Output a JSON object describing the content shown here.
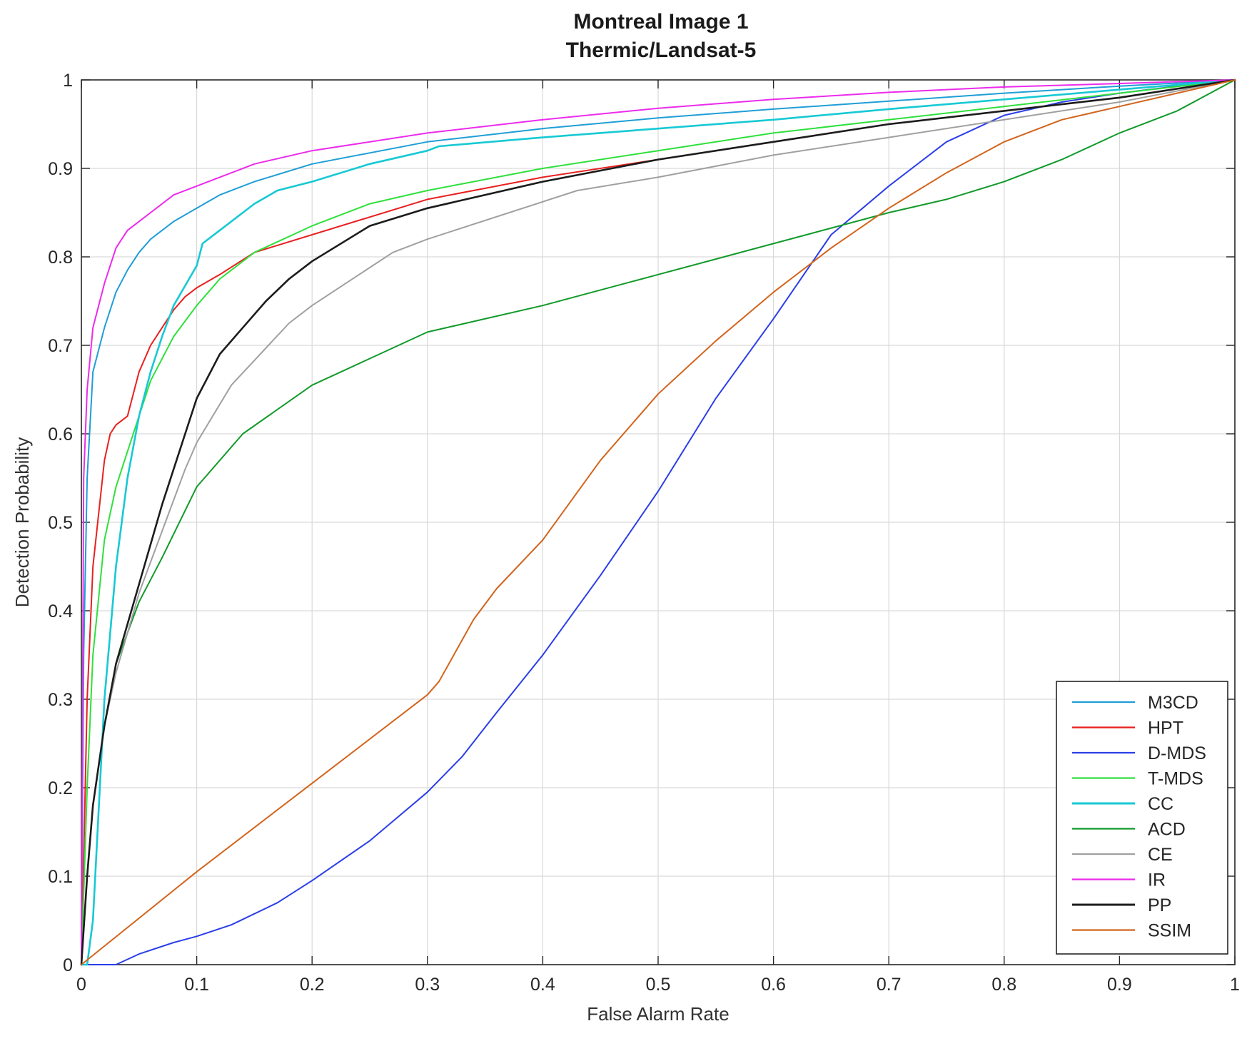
{
  "chart_data": {
    "type": "line",
    "title": "Montreal Image 1",
    "subtitle": "Thermic/Landsat-5",
    "xlabel": "False Alarm Rate",
    "ylabel": "Detection Probability",
    "xlim": [
      0,
      1
    ],
    "ylim": [
      0,
      1
    ],
    "xticks": [
      "0",
      "0.1",
      "0.2",
      "0.3",
      "0.4",
      "0.5",
      "0.6",
      "0.7",
      "0.8",
      "0.9",
      "1"
    ],
    "yticks": [
      "0",
      "0.1",
      "0.2",
      "0.3",
      "0.4",
      "0.5",
      "0.6",
      "0.7",
      "0.8",
      "0.9",
      "1"
    ],
    "grid": true,
    "legend_position": "bottom-right",
    "series": [
      {
        "name": "M3CD",
        "color": "#1f9ed6",
        "x": [
          0,
          0.002,
          0.005,
          0.01,
          0.02,
          0.03,
          0.04,
          0.05,
          0.06,
          0.08,
          0.1,
          0.12,
          0.15,
          0.2,
          0.3,
          0.4,
          0.5,
          0.6,
          0.7,
          0.8,
          0.9,
          1
        ],
        "y": [
          0,
          0.35,
          0.55,
          0.67,
          0.72,
          0.76,
          0.785,
          0.805,
          0.82,
          0.84,
          0.855,
          0.87,
          0.885,
          0.905,
          0.93,
          0.945,
          0.957,
          0.967,
          0.976,
          0.985,
          0.993,
          1
        ]
      },
      {
        "name": "HPT",
        "color": "#e8201f",
        "x": [
          0,
          0.005,
          0.01,
          0.02,
          0.025,
          0.03,
          0.04,
          0.05,
          0.06,
          0.07,
          0.08,
          0.09,
          0.1,
          0.12,
          0.15,
          0.2,
          0.3,
          0.4,
          0.5,
          0.6,
          0.7,
          0.8,
          0.9,
          1
        ],
        "y": [
          0,
          0.3,
          0.45,
          0.57,
          0.6,
          0.61,
          0.62,
          0.67,
          0.7,
          0.72,
          0.74,
          0.755,
          0.765,
          0.78,
          0.805,
          0.825,
          0.865,
          0.89,
          0.91,
          0.93,
          0.95,
          0.965,
          0.98,
          1
        ]
      },
      {
        "name": "D-MDS",
        "color": "#2b3ee8",
        "x": [
          0,
          0.02,
          0.03,
          0.05,
          0.08,
          0.1,
          0.13,
          0.17,
          0.2,
          0.25,
          0.3,
          0.33,
          0.36,
          0.4,
          0.45,
          0.5,
          0.55,
          0.6,
          0.65,
          0.7,
          0.75,
          0.8,
          0.85,
          0.9,
          0.95,
          1
        ],
        "y": [
          0,
          0,
          0,
          0.012,
          0.025,
          0.032,
          0.045,
          0.07,
          0.095,
          0.14,
          0.195,
          0.235,
          0.285,
          0.35,
          0.44,
          0.535,
          0.64,
          0.73,
          0.825,
          0.88,
          0.93,
          0.96,
          0.975,
          0.985,
          0.993,
          1
        ]
      },
      {
        "name": "T-MDS",
        "color": "#2fe03c",
        "x": [
          0,
          0.005,
          0.01,
          0.02,
          0.03,
          0.04,
          0.05,
          0.06,
          0.08,
          0.1,
          0.12,
          0.15,
          0.2,
          0.25,
          0.3,
          0.4,
          0.5,
          0.6,
          0.7,
          0.8,
          0.9,
          1
        ],
        "y": [
          0,
          0.2,
          0.35,
          0.48,
          0.54,
          0.58,
          0.62,
          0.66,
          0.71,
          0.745,
          0.775,
          0.805,
          0.835,
          0.86,
          0.875,
          0.9,
          0.92,
          0.94,
          0.955,
          0.97,
          0.985,
          1
        ]
      },
      {
        "name": "CC",
        "color": "#17c9d4",
        "x": [
          0,
          0.005,
          0.01,
          0.02,
          0.03,
          0.04,
          0.05,
          0.06,
          0.07,
          0.08,
          0.1,
          0.105,
          0.12,
          0.15,
          0.17,
          0.2,
          0.25,
          0.3,
          0.31,
          0.4,
          0.5,
          0.6,
          0.7,
          0.8,
          0.9,
          1
        ],
        "y": [
          0,
          0,
          0.05,
          0.3,
          0.45,
          0.55,
          0.62,
          0.67,
          0.71,
          0.745,
          0.79,
          0.815,
          0.83,
          0.86,
          0.875,
          0.885,
          0.905,
          0.92,
          0.925,
          0.935,
          0.945,
          0.955,
          0.967,
          0.978,
          0.989,
          1
        ]
      },
      {
        "name": "ACD",
        "color": "#119a2a",
        "x": [
          0,
          0.005,
          0.01,
          0.02,
          0.03,
          0.05,
          0.07,
          0.1,
          0.14,
          0.2,
          0.3,
          0.4,
          0.5,
          0.6,
          0.7,
          0.75,
          0.8,
          0.85,
          0.9,
          0.95,
          1
        ],
        "y": [
          0,
          0.1,
          0.18,
          0.27,
          0.34,
          0.41,
          0.46,
          0.54,
          0.6,
          0.655,
          0.715,
          0.745,
          0.78,
          0.815,
          0.85,
          0.865,
          0.885,
          0.91,
          0.94,
          0.965,
          1
        ]
      },
      {
        "name": "CE",
        "color": "#a0a0a0",
        "x": [
          0,
          0.005,
          0.01,
          0.02,
          0.03,
          0.05,
          0.07,
          0.09,
          0.1,
          0.13,
          0.18,
          0.2,
          0.27,
          0.3,
          0.43,
          0.5,
          0.6,
          0.7,
          0.8,
          0.9,
          1
        ],
        "y": [
          0,
          0.1,
          0.18,
          0.27,
          0.33,
          0.42,
          0.49,
          0.56,
          0.59,
          0.655,
          0.725,
          0.745,
          0.805,
          0.82,
          0.875,
          0.89,
          0.915,
          0.935,
          0.955,
          0.975,
          1
        ]
      },
      {
        "name": "IR",
        "color": "#ec2bec",
        "x": [
          0,
          0.002,
          0.005,
          0.01,
          0.02,
          0.03,
          0.04,
          0.05,
          0.06,
          0.08,
          0.1,
          0.12,
          0.15,
          0.2,
          0.3,
          0.4,
          0.5,
          0.6,
          0.7,
          0.8,
          0.9,
          1
        ],
        "y": [
          0,
          0.55,
          0.65,
          0.72,
          0.77,
          0.81,
          0.83,
          0.84,
          0.85,
          0.87,
          0.88,
          0.89,
          0.905,
          0.92,
          0.94,
          0.955,
          0.968,
          0.978,
          0.986,
          0.992,
          0.996,
          1
        ]
      },
      {
        "name": "PP",
        "color": "#1c1c1c",
        "x": [
          0,
          0.005,
          0.01,
          0.02,
          0.03,
          0.05,
          0.07,
          0.09,
          0.1,
          0.12,
          0.14,
          0.16,
          0.18,
          0.2,
          0.25,
          0.3,
          0.4,
          0.5,
          0.6,
          0.7,
          0.8,
          0.9,
          1
        ],
        "y": [
          0,
          0.1,
          0.18,
          0.27,
          0.34,
          0.43,
          0.52,
          0.6,
          0.64,
          0.69,
          0.72,
          0.75,
          0.775,
          0.795,
          0.835,
          0.855,
          0.885,
          0.91,
          0.93,
          0.95,
          0.965,
          0.98,
          1
        ]
      },
      {
        "name": "SSIM",
        "color": "#d2641c",
        "x": [
          0,
          0.1,
          0.2,
          0.3,
          0.31,
          0.34,
          0.36,
          0.4,
          0.45,
          0.5,
          0.55,
          0.6,
          0.65,
          0.7,
          0.75,
          0.8,
          0.85,
          0.9,
          1
        ],
        "y": [
          0,
          0.105,
          0.205,
          0.305,
          0.32,
          0.39,
          0.425,
          0.48,
          0.57,
          0.645,
          0.705,
          0.76,
          0.81,
          0.855,
          0.895,
          0.93,
          0.955,
          0.97,
          1
        ]
      }
    ]
  }
}
